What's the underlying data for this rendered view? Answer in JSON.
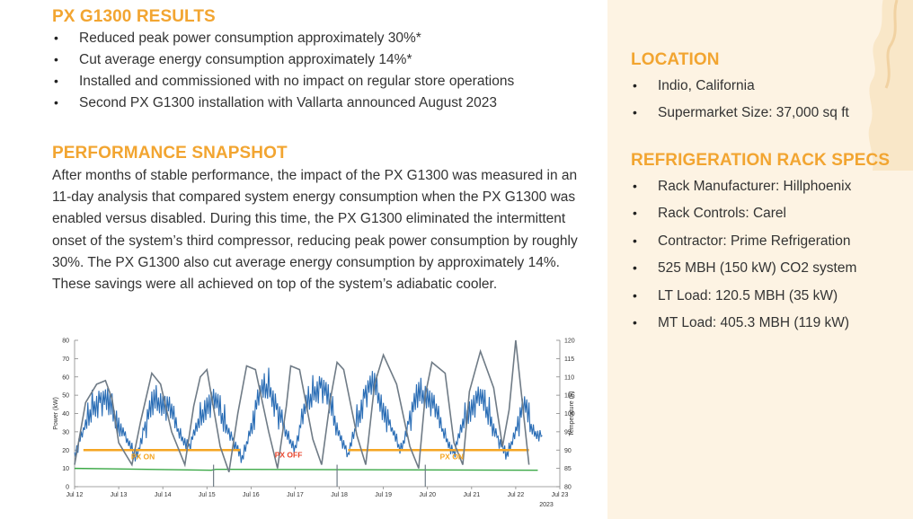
{
  "results": {
    "heading": "PX G1300 RESULTS",
    "bullets": [
      "Reduced peak power consumption approximately 30%*",
      "Cut average energy consumption approximately 14%*",
      "Installed and commissioned with no impact on regular store operations",
      "Second PX G1300 installation with Vallarta announced August 2023"
    ]
  },
  "snapshot": {
    "heading": "PERFORMANCE SNAPSHOT",
    "paragraph": "After months of stable performance, the impact of the PX G1300 was measured in an 11-day analysis that compared system energy consumption when the PX G1300 was enabled versus disabled. During this time, the PX G1300 eliminated the intermittent onset of the system’s third compressor, reducing peak power consumption by roughly 30%. The PX G1300 also cut average energy consumption by approximately 14%. These savings were all achieved on top of the system’s adiabatic cooler."
  },
  "location": {
    "heading": "LOCATION",
    "bullets": [
      "Indio, California",
      "Supermarket Size: 37,000 sq ft"
    ]
  },
  "rack": {
    "heading": "REFRIGERATION RACK SPECS",
    "bullets": [
      "Rack Manufacturer: Hillphoenix",
      "Rack Controls: Carel",
      "Contractor: Prime Refrigeration",
      "525 MBH (150 kW) CO2 system",
      "LT Load: 120.5 MBH (35 kW)",
      "MT Load: 405.3 MBH (119 kW)"
    ]
  },
  "colors": {
    "accent": "#f2a531",
    "power": "#2a6db5",
    "temperature": "#6f7b86",
    "threshold": "#f5a623",
    "baseline": "#3aa845",
    "px_off": "#e8452c"
  },
  "chart_data": {
    "type": "line",
    "ylabel": "Power (kW)",
    "y2label": "Temperature (F)",
    "ylim": [
      0,
      80
    ],
    "y2lim": [
      80,
      120
    ],
    "yticks": [
      0,
      10,
      20,
      30,
      40,
      50,
      60,
      70,
      80
    ],
    "y2ticks": [
      80,
      85,
      90,
      95,
      100,
      105,
      110,
      115,
      120
    ],
    "xlim": [
      0,
      11
    ],
    "categories": [
      "Jul 12",
      "Jul 13",
      "Jul 14",
      "Jul 15",
      "Jul 16",
      "Jul 17",
      "Jul 18",
      "Jul 19",
      "Jul 20",
      "Jul 21",
      "Jul 22",
      "Jul 23"
    ],
    "year_label": "2023",
    "annotations": [
      {
        "text": "PX ON",
        "x": 1.55,
        "y": 15
      },
      {
        "text": "PX OFF",
        "x": 4.85,
        "y": 16
      },
      {
        "text": "PX ON",
        "x": 8.55,
        "y": 15
      }
    ],
    "threshold": {
      "name": "Threshold",
      "y": 20
    },
    "baseline": {
      "name": "Baseline",
      "x": [
        0,
        3.1,
        3.2,
        10.5
      ],
      "values": [
        10,
        9,
        9.5,
        9
      ]
    },
    "temperature": {
      "name": "Temperature",
      "x": [
        0,
        0.25,
        0.5,
        0.7,
        0.85,
        1.0,
        1.3,
        1.5,
        1.75,
        1.95,
        2.2,
        2.5,
        2.7,
        2.85,
        3.0,
        3.3,
        3.5,
        3.7,
        3.9,
        4.1,
        4.4,
        4.6,
        4.8,
        4.9,
        5.1,
        5.4,
        5.6,
        5.8,
        5.95,
        6.1,
        6.4,
        6.6,
        6.8,
        7.0,
        7.3,
        7.6,
        7.8,
        7.95,
        8.1,
        8.4,
        8.6,
        8.8,
        8.95,
        9.2,
        9.5,
        9.7,
        9.85,
        10.0,
        10.3
      ],
      "values": [
        86,
        103,
        108,
        109,
        104,
        92,
        86,
        98,
        111,
        108,
        95,
        86,
        102,
        110,
        112,
        91,
        84,
        100,
        113,
        112,
        95,
        85,
        102,
        113,
        112,
        93,
        86,
        104,
        114,
        112,
        94,
        86,
        108,
        116,
        108,
        91,
        85,
        105,
        114,
        111,
        92,
        86,
        106,
        117,
        107,
        91,
        101,
        120,
        86
      ]
    },
    "power": {
      "name": "Power",
      "x": [
        0,
        0.2,
        0.4,
        0.6,
        0.8,
        1.0,
        1.2,
        1.4,
        1.6,
        1.8,
        2.0,
        2.2,
        2.4,
        2.6,
        2.8,
        3.0,
        3.2,
        3.4,
        3.6,
        3.8,
        4.0,
        4.2,
        4.4,
        4.6,
        4.8,
        5.0,
        5.2,
        5.4,
        5.6,
        5.8,
        6.0,
        6.2,
        6.4,
        6.6,
        6.8,
        7.0,
        7.2,
        7.4,
        7.6,
        7.8,
        8.0,
        8.2,
        8.4,
        8.6,
        8.8,
        9.0,
        9.2,
        9.4,
        9.6,
        9.8,
        10.0,
        10.2,
        10.4,
        10.6
      ],
      "values": [
        18,
        30,
        44,
        48,
        44,
        36,
        24,
        16,
        34,
        46,
        48,
        40,
        28,
        22,
        34,
        47,
        46,
        36,
        25,
        14,
        34,
        50,
        56,
        42,
        28,
        22,
        40,
        52,
        56,
        44,
        30,
        16,
        36,
        52,
        55,
        44,
        30,
        20,
        38,
        50,
        52,
        40,
        28,
        18,
        34,
        46,
        48,
        40,
        26,
        16,
        32,
        44,
        30,
        28
      ]
    }
  }
}
